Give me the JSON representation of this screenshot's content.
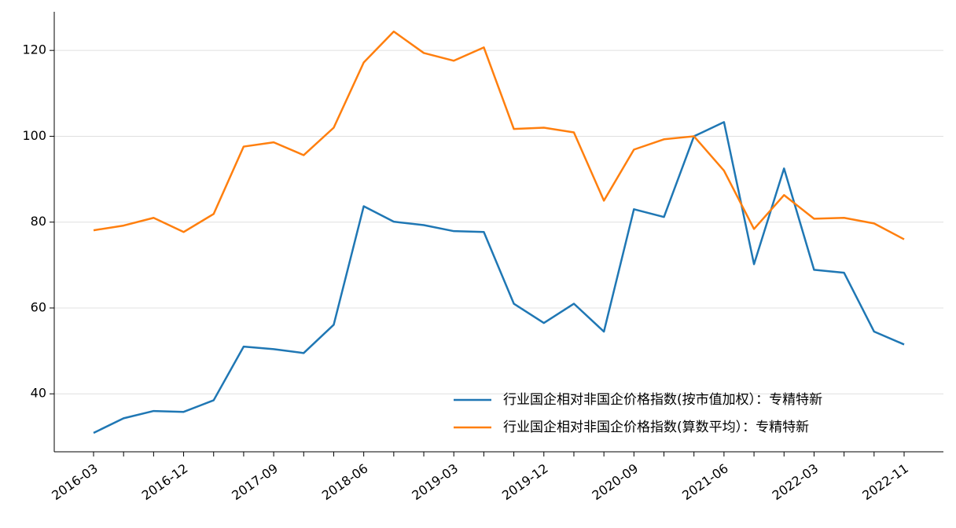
{
  "chart_data": {
    "type": "line",
    "categories": [
      "2016-03",
      null,
      null,
      "2016-12",
      null,
      null,
      "2017-09",
      null,
      null,
      "2018-06",
      null,
      null,
      "2019-03",
      null,
      null,
      "2019-12",
      null,
      null,
      "2020-09",
      null,
      null,
      "2021-06",
      null,
      null,
      "2022-03",
      null,
      null,
      "2022-11"
    ],
    "series": [
      {
        "name": "行业国企相对非国企价格指数(按市值加权）：专精特新",
        "color": "#1f77b4",
        "values": [
          30.9,
          34.3,
          36.0,
          35.8,
          38.5,
          51.0,
          50.4,
          49.5,
          56.1,
          83.7,
          80.1,
          79.3,
          77.9,
          77.7,
          61.0,
          56.5,
          61.0,
          54.5,
          83.0,
          81.2,
          100.0,
          103.3,
          70.2,
          92.5,
          68.9,
          68.2,
          54.5,
          51.5
        ]
      },
      {
        "name": "行业国企相对非国企价格指数(算数平均）：专精特新",
        "color": "#ff7f0e",
        "values": [
          78.1,
          79.2,
          81.0,
          77.7,
          81.9,
          97.6,
          98.6,
          95.6,
          102.0,
          117.2,
          124.4,
          119.4,
          117.6,
          120.7,
          101.7,
          102.0,
          100.9,
          85.0,
          96.9,
          99.3,
          100.0,
          92.0,
          78.4,
          86.3,
          80.8,
          81.0,
          79.7,
          76.0
        ]
      }
    ],
    "ylim": [
      26.5,
      129
    ],
    "yticks": [
      40,
      60,
      80,
      100,
      120
    ],
    "grid": true,
    "legend": "lower right"
  }
}
